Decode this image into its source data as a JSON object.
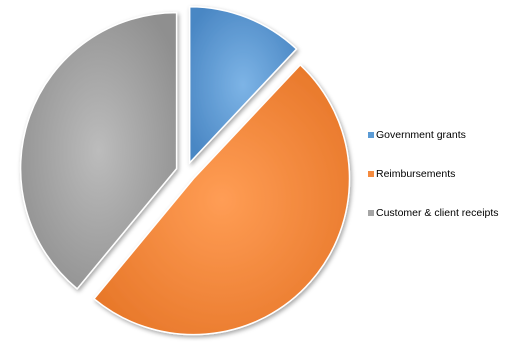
{
  "chart_data": {
    "type": "pie",
    "title": "",
    "categories": [
      "Government grants",
      "Reimbursements",
      "Customer & client receipts"
    ],
    "values": [
      12,
      49,
      39
    ],
    "colors": [
      "#5b9bd5",
      "#f58b3f",
      "#a5a5a5"
    ],
    "exploded": true,
    "legend_position": "right"
  }
}
